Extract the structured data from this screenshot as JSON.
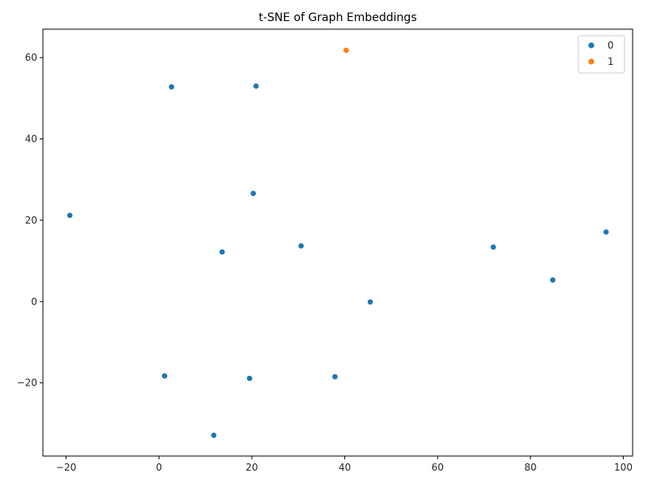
{
  "chart_data": {
    "type": "scatter",
    "title": "t-SNE of Graph Embeddings",
    "xlabel": "",
    "ylabel": "",
    "xlim": [
      -25,
      102
    ],
    "ylim": [
      -38,
      67
    ],
    "xticks": [
      -20,
      0,
      20,
      40,
      60,
      80,
      100
    ],
    "yticks": [
      -20,
      0,
      20,
      40,
      60
    ],
    "grid": false,
    "legend_position": "upper-right",
    "series": [
      {
        "name": "0",
        "color": "#1f77b4",
        "points": [
          {
            "x": 2.7,
            "y": 52.8
          },
          {
            "x": 20.9,
            "y": 53.0
          },
          {
            "x": 20.3,
            "y": 26.6
          },
          {
            "x": -19.2,
            "y": 21.2
          },
          {
            "x": 13.6,
            "y": 12.2
          },
          {
            "x": 30.6,
            "y": 13.7
          },
          {
            "x": 72.0,
            "y": 13.4
          },
          {
            "x": 96.3,
            "y": 17.1
          },
          {
            "x": 84.8,
            "y": 5.3
          },
          {
            "x": 45.5,
            "y": -0.1
          },
          {
            "x": 1.2,
            "y": -18.3
          },
          {
            "x": 19.5,
            "y": -18.9
          },
          {
            "x": 37.9,
            "y": -18.5
          },
          {
            "x": 11.8,
            "y": -32.9
          }
        ]
      },
      {
        "name": "1",
        "color": "#ff7f0e",
        "points": [
          {
            "x": 40.3,
            "y": 61.8
          }
        ]
      }
    ]
  }
}
